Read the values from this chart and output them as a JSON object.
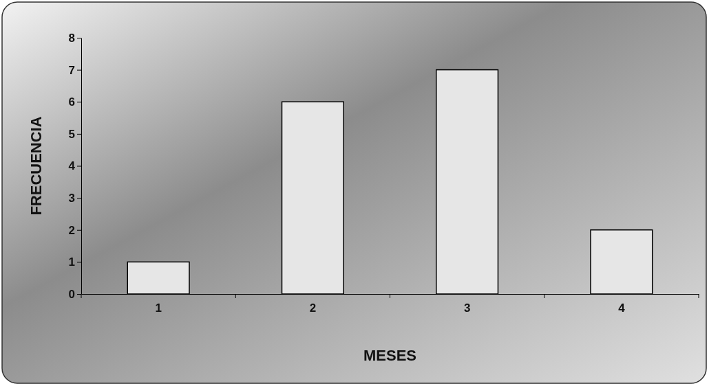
{
  "chart_data": {
    "type": "bar",
    "xlabel": "MESES",
    "ylabel": "FRECUENCIA",
    "categories": [
      "1",
      "2",
      "3",
      "4"
    ],
    "values": [
      1,
      6,
      7,
      2
    ],
    "color": "#e6e6e6",
    "ylim": [
      0,
      8
    ],
    "yticks": [
      0,
      1,
      2,
      3,
      4,
      5,
      6,
      7,
      8
    ],
    "grid": false
  }
}
